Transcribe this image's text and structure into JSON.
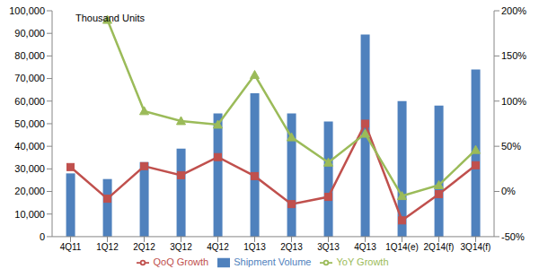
{
  "chart_data": {
    "type": "bar",
    "ylabel": "Thousand Units",
    "categories": [
      "4Q11",
      "1Q12",
      "2Q12",
      "3Q12",
      "4Q12",
      "1Q13",
      "2Q13",
      "3Q13",
      "4Q13",
      "1Q14(e)",
      "2Q14(f)",
      "3Q14(f)"
    ],
    "series": [
      {
        "name": "Shipment Volume",
        "type": "bar",
        "color": "#4F81BD",
        "values": [
          28000,
          25500,
          33000,
          39000,
          54500,
          63500,
          54500,
          51000,
          89500,
          60000,
          58000,
          74000
        ]
      },
      {
        "name": "QoQ Growth",
        "type": "line",
        "axis": "y2",
        "color": "#C0504D",
        "marker": "square",
        "values": [
          27,
          -8,
          28,
          18,
          38,
          17,
          -14,
          -6,
          75,
          -32,
          -3,
          29
        ]
      },
      {
        "name": "YoY Growth",
        "type": "line",
        "axis": "y2",
        "color": "#9BBB59",
        "marker": "triangle",
        "values": [
          null,
          190,
          89,
          78,
          74,
          129,
          60,
          32,
          64,
          -5,
          7,
          46
        ]
      }
    ],
    "ylim": [
      0,
      100000
    ],
    "yticks": [
      0,
      {
        "value": 10000,
        "label": "10,000"
      },
      {
        "value": 20000,
        "label": "20,000"
      },
      {
        "value": 30000,
        "label": "30,000"
      },
      {
        "value": 40000,
        "label": "40,000"
      },
      {
        "value": 50000,
        "label": "50,000"
      },
      {
        "value": 60000,
        "label": "60,000"
      },
      {
        "value": 70000,
        "label": "70,000"
      },
      {
        "value": 80000,
        "label": "80,000"
      },
      {
        "value": 90000,
        "label": "90,000"
      },
      {
        "value": 100000,
        "label": "100,000"
      }
    ],
    "y2lim": [
      -50,
      200
    ],
    "y2ticks": [
      {
        "value": -50,
        "label": "-50%"
      },
      {
        "value": 0,
        "label": "0%"
      },
      {
        "value": 50,
        "label": "50%"
      },
      {
        "value": 100,
        "label": "100%"
      },
      {
        "value": 150,
        "label": "150%"
      },
      {
        "value": 200,
        "label": "200%"
      }
    ],
    "grid": false,
    "legend": "bottom"
  }
}
